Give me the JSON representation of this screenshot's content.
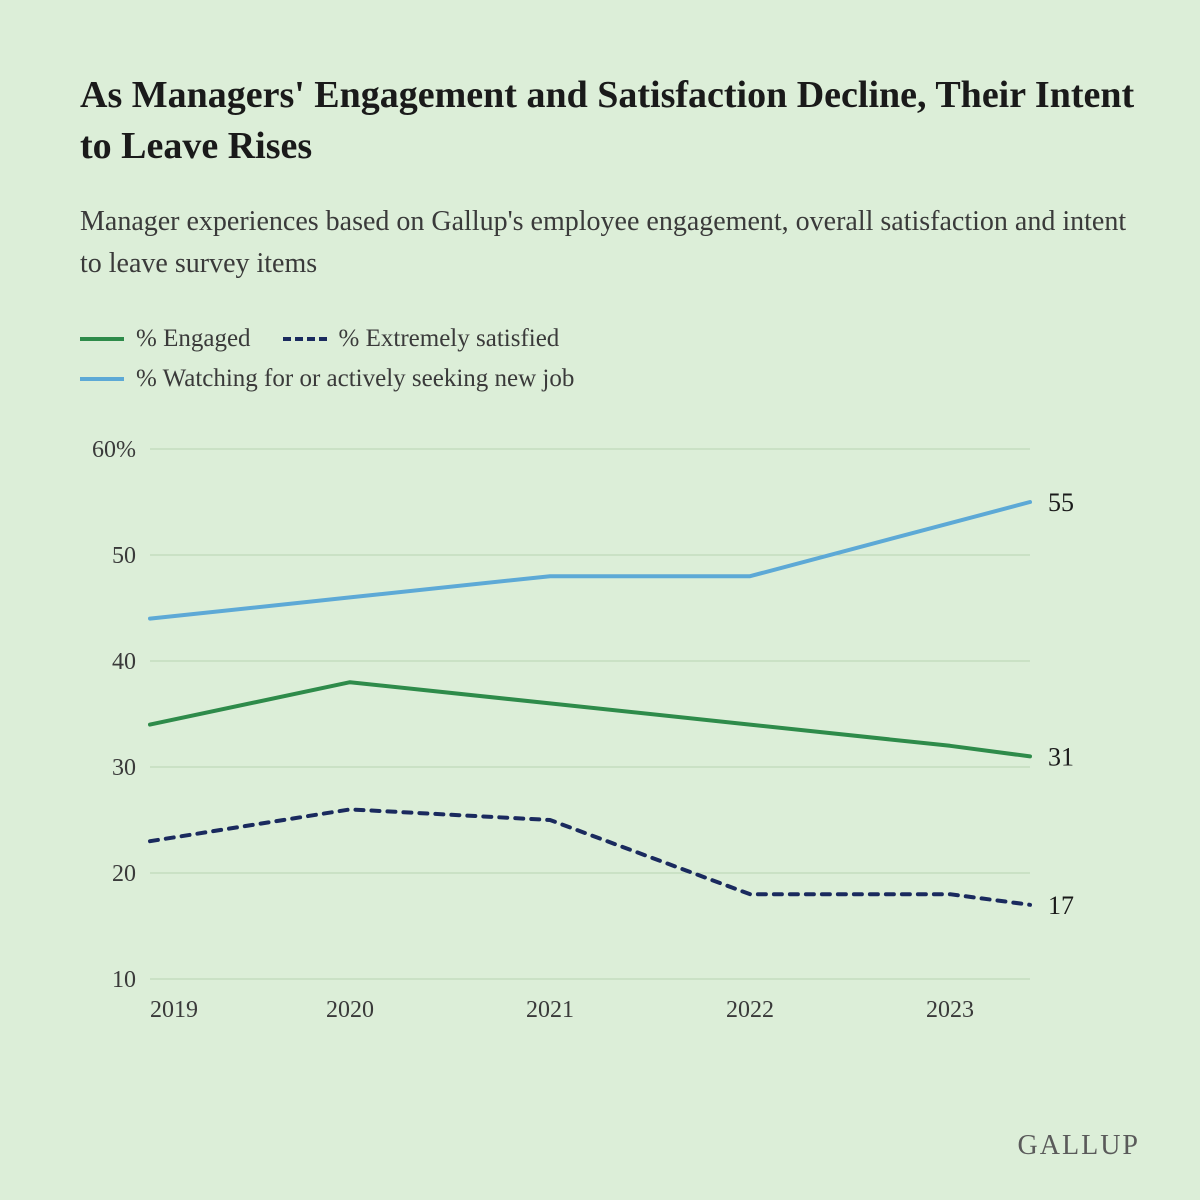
{
  "title": "As Managers' Engagement and Satisfaction Decline, Their Intent to Leave Rises",
  "subtitle": "Manager experiences based on Gallup's employee engagement, overall satisfaction and intent to leave survey items",
  "brand": "GALLUP",
  "legend": {
    "engaged": "% Engaged",
    "satisfied": "% Extremely satisfied",
    "watching": "% Watching for or actively seeking new job"
  },
  "chart": {
    "type": "line",
    "background_color": "#dceed8",
    "grid_color": "#b8d4b2",
    "axis_font_size": 24,
    "end_label_font_size": 26,
    "x_categories": [
      "2019",
      "2020",
      "2021",
      "2022",
      "2023"
    ],
    "x_positions": [
      0,
      1,
      2,
      3,
      4,
      4.4
    ],
    "ylim": [
      10,
      60
    ],
    "ytick_step": 10,
    "y_unit_suffix_on_max": "%",
    "line_width": 4,
    "series": [
      {
        "key": "watching",
        "color": "#5da9d6",
        "style": "solid",
        "values_at_x": [
          44,
          46,
          48,
          48,
          53,
          55
        ],
        "end_label": "55"
      },
      {
        "key": "engaged",
        "color": "#2e8b4a",
        "style": "solid",
        "values_at_x": [
          34,
          38,
          36,
          34,
          32,
          31
        ],
        "end_label": "31"
      },
      {
        "key": "satisfied",
        "color": "#1a2a5e",
        "style": "dashed",
        "dash_pattern": "8 8",
        "values_at_x": [
          23,
          26,
          25,
          18,
          18,
          17
        ],
        "end_label": "17"
      }
    ]
  }
}
